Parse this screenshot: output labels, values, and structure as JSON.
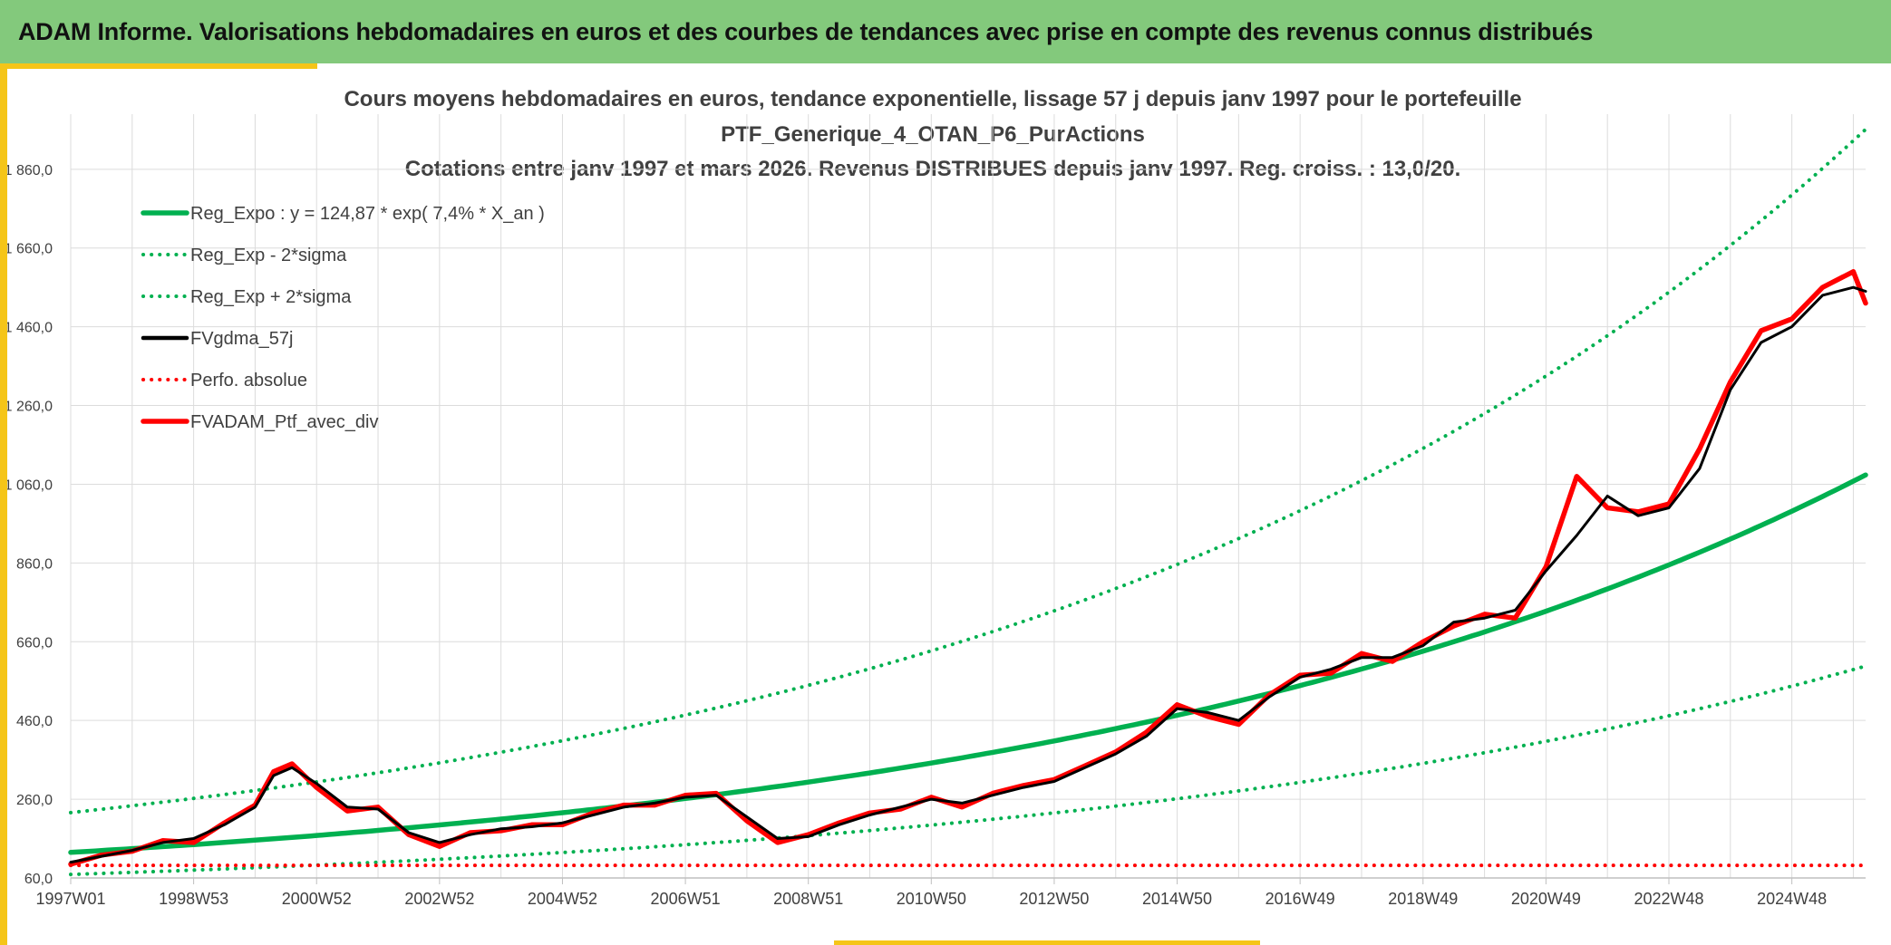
{
  "banner": {
    "title": "ADAM Informe. Valorisations hebdomadaires en euros et des courbes de tendances avec prise en compte des revenus connus distribués"
  },
  "colors": {
    "banner_bg": "#83c97c",
    "accent": "#f5c518",
    "green": "#00b050",
    "black": "#000000",
    "red": "#ff0000",
    "grid": "#d9d9d9",
    "title_text": "#404040"
  },
  "chart_data": {
    "type": "line",
    "title_lines": [
      "Cours moyens hebdomadaires en euros, tendance exponentielle, lissage 57 j depuis janv 1997 pour le portefeuille",
      "PTF_Generique_4_OTAN_P6_PurActions",
      "Cotations entre janv 1997 et mars 2026. Revenus DISTRIBUES depuis janv 1997. Reg. croiss. : 13,0/20."
    ],
    "xlabel": "",
    "ylabel": "",
    "x_unit": "years since 1997W01",
    "xlim": [
      0,
      29.2
    ],
    "ylim": [
      60,
      2000
    ],
    "x_ticks": [
      {
        "label": "1997W01",
        "x": 0
      },
      {
        "label": "1998W53",
        "x": 2
      },
      {
        "label": "2000W52",
        "x": 4
      },
      {
        "label": "2002W52",
        "x": 6
      },
      {
        "label": "2004W52",
        "x": 8
      },
      {
        "label": "2006W51",
        "x": 10
      },
      {
        "label": "2008W51",
        "x": 12
      },
      {
        "label": "2010W50",
        "x": 14
      },
      {
        "label": "2012W50",
        "x": 16
      },
      {
        "label": "2014W50",
        "x": 18
      },
      {
        "label": "2016W49",
        "x": 20
      },
      {
        "label": "2018W49",
        "x": 22
      },
      {
        "label": "2020W49",
        "x": 24
      },
      {
        "label": "2022W48",
        "x": 26
      },
      {
        "label": "2024W48",
        "x": 28
      }
    ],
    "y_ticks": [
      {
        "label": "60,0",
        "value": 60
      },
      {
        "label": "260,0",
        "value": 260
      },
      {
        "label": "460,0",
        "value": 460
      },
      {
        "label": "660,0",
        "value": 660
      },
      {
        "label": "860,0",
        "value": 860
      },
      {
        "label": "1 060,0",
        "value": 1060
      },
      {
        "label": "1 260,0",
        "value": 1260
      },
      {
        "label": "1 460,0",
        "value": 1460
      },
      {
        "label": "1 660,0",
        "value": 1660
      },
      {
        "label": "1 860,0",
        "value": 1860
      }
    ],
    "legend_position": "top-left",
    "series": [
      {
        "name": "Reg_Expo : y = 124,87 * exp( 7,4% *  X_an )",
        "style": "solid-thick",
        "color": "#00b050",
        "formula": {
          "a": 124.87,
          "rate": 0.074,
          "factor": 1.0
        }
      },
      {
        "name": "Reg_Exp - 2*sigma",
        "style": "dotted",
        "color": "#00b050",
        "formula": {
          "a": 124.87,
          "rate": 0.074,
          "factor": 0.552
        }
      },
      {
        "name": "Reg_Exp + 2*sigma",
        "style": "dotted",
        "color": "#00b050",
        "formula": {
          "a": 124.87,
          "rate": 0.074,
          "factor": 1.81
        }
      },
      {
        "name": "FVgdma_57j",
        "style": "solid",
        "color": "#000000",
        "x": [
          0,
          0.5,
          1,
          1.5,
          2,
          2.5,
          3,
          3.3,
          3.6,
          4,
          4.5,
          5,
          5.5,
          6,
          6.5,
          7,
          7.5,
          8,
          8.5,
          9,
          9.5,
          10,
          10.5,
          11,
          11.5,
          12,
          12.5,
          13,
          13.5,
          14,
          14.5,
          15,
          15.5,
          16,
          16.5,
          17,
          17.5,
          18,
          18.5,
          19,
          19.5,
          20,
          20.5,
          21,
          21.5,
          22,
          22.5,
          23,
          23.5,
          24,
          24.5,
          25,
          25.5,
          26,
          26.5,
          27,
          27.5,
          28,
          28.5,
          29,
          29.2
        ],
        "values": [
          100,
          115,
          130,
          150,
          160,
          195,
          240,
          320,
          340,
          300,
          240,
          235,
          175,
          150,
          170,
          185,
          190,
          200,
          220,
          240,
          250,
          265,
          270,
          215,
          160,
          165,
          195,
          220,
          240,
          260,
          250,
          270,
          290,
          305,
          340,
          375,
          420,
          490,
          480,
          460,
          520,
          570,
          590,
          620,
          620,
          650,
          710,
          720,
          740,
          840,
          930,
          1030,
          980,
          1000,
          1100,
          1300,
          1420,
          1460,
          1540,
          1560,
          1550
        ]
      },
      {
        "name": "Perfo. absolue",
        "style": "dotted",
        "color": "#ff0000",
        "x": [
          0,
          29.2
        ],
        "values": [
          92,
          92
        ]
      },
      {
        "name": "FVADAM_Ptf_avec_div",
        "style": "solid-thick",
        "color": "#ff0000",
        "x": [
          0,
          0.5,
          1,
          1.5,
          2,
          2.5,
          3,
          3.3,
          3.6,
          4,
          4.5,
          5,
          5.5,
          6,
          6.5,
          7,
          7.5,
          8,
          8.5,
          9,
          9.5,
          10,
          10.5,
          11,
          11.5,
          12,
          12.5,
          13,
          13.5,
          14,
          14.5,
          15,
          15.5,
          16,
          16.5,
          17,
          17.5,
          18,
          18.5,
          19,
          19.5,
          20,
          20.5,
          21,
          21.5,
          22,
          22.5,
          23,
          23.5,
          24,
          24.5,
          25,
          25.5,
          26,
          26.5,
          27,
          27.5,
          28,
          28.5,
          29,
          29.2
        ],
        "values": [
          95,
          118,
          128,
          155,
          150,
          200,
          245,
          330,
          350,
          290,
          230,
          240,
          170,
          140,
          175,
          180,
          195,
          195,
          225,
          245,
          245,
          270,
          275,
          205,
          150,
          170,
          200,
          225,
          235,
          265,
          240,
          275,
          295,
          310,
          345,
          380,
          430,
          500,
          470,
          450,
          525,
          575,
          580,
          630,
          610,
          660,
          700,
          730,
          720,
          850,
          1080,
          1000,
          990,
          1010,
          1150,
          1320,
          1450,
          1480,
          1560,
          1600,
          1520
        ]
      }
    ]
  }
}
